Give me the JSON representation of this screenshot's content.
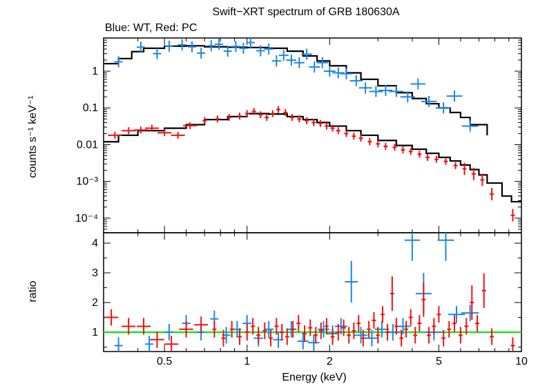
{
  "title": "Swift−XRT spectrum of GRB 180630A",
  "subtitle": "Blue: WT, Red: PC",
  "colors": {
    "wt": "#1a87e6",
    "pc": "#ee1111",
    "model": "#000000",
    "unity": "#22dd22"
  },
  "chart_data": [
    {
      "type": "scatter",
      "panel": "spectrum",
      "xlabel": "Energy (keV)",
      "ylabel": "counts s⁻¹ keV⁻¹",
      "xscale": "log",
      "yscale": "log",
      "xlim": [
        0.3,
        10
      ],
      "ylim": [
        4e-05,
        8
      ],
      "ytick_labels": [
        {
          "v": 1,
          "label": "1"
        },
        {
          "v": 0.1,
          "label": "0.1"
        },
        {
          "v": 0.01,
          "label": "0.01"
        },
        {
          "v": 0.001,
          "label": "10⁻³"
        },
        {
          "v": 0.0001,
          "label": "10⁻⁴"
        }
      ],
      "series": [
        {
          "name": "WT",
          "color": "#1a87e6",
          "points": [
            [
              0.34,
              1.8
            ],
            [
              0.41,
              4.5
            ],
            [
              0.47,
              3.0
            ],
            [
              0.52,
              4.8
            ],
            [
              0.58,
              5.2
            ],
            [
              0.63,
              4.6
            ],
            [
              0.68,
              3.1
            ],
            [
              0.74,
              4.9
            ],
            [
              0.79,
              5.4
            ],
            [
              0.85,
              3.5
            ],
            [
              0.91,
              4.7
            ],
            [
              0.97,
              4.2
            ],
            [
              1.03,
              6.0
            ],
            [
              1.12,
              3.6
            ],
            [
              1.2,
              4.0
            ],
            [
              1.28,
              1.9
            ],
            [
              1.36,
              2.7
            ],
            [
              1.45,
              2.0
            ],
            [
              1.55,
              1.7
            ],
            [
              1.65,
              2.9
            ],
            [
              1.76,
              1.3
            ],
            [
              1.88,
              1.7
            ],
            [
              2.0,
              1.0
            ],
            [
              2.15,
              0.9
            ],
            [
              2.3,
              0.85
            ],
            [
              2.5,
              0.55
            ],
            [
              2.7,
              0.35
            ],
            [
              2.95,
              0.28
            ],
            [
              3.2,
              0.3
            ],
            [
              3.5,
              0.28
            ],
            [
              3.85,
              0.2
            ],
            [
              4.2,
              0.45
            ],
            [
              4.6,
              0.15
            ],
            [
              5.2,
              0.1
            ],
            [
              5.7,
              0.21
            ],
            [
              6.5,
              0.032
            ]
          ]
        },
        {
          "name": "PC",
          "color": "#ee1111",
          "points": [
            [
              0.33,
              0.018
            ],
            [
              0.37,
              0.024
            ],
            [
              0.41,
              0.025
            ],
            [
              0.45,
              0.028
            ],
            [
              0.5,
              0.021
            ],
            [
              0.56,
              0.018
            ],
            [
              0.62,
              0.033
            ],
            [
              0.7,
              0.045
            ],
            [
              0.78,
              0.05
            ],
            [
              0.86,
              0.055
            ],
            [
              0.94,
              0.06
            ],
            [
              1.0,
              0.07
            ],
            [
              1.06,
              0.08
            ],
            [
              1.12,
              0.065
            ],
            [
              1.18,
              0.055
            ],
            [
              1.24,
              0.07
            ],
            [
              1.3,
              0.09
            ],
            [
              1.38,
              0.075
            ],
            [
              1.46,
              0.055
            ],
            [
              1.55,
              0.05
            ],
            [
              1.65,
              0.045
            ],
            [
              1.75,
              0.04
            ],
            [
              1.85,
              0.038
            ],
            [
              1.95,
              0.032
            ],
            [
              2.05,
              0.028
            ],
            [
              2.15,
              0.024
            ],
            [
              2.3,
              0.02
            ],
            [
              2.45,
              0.017
            ],
            [
              2.6,
              0.015
            ],
            [
              2.8,
              0.012
            ],
            [
              3.0,
              0.0105
            ],
            [
              3.2,
              0.009
            ],
            [
              3.45,
              0.0085
            ],
            [
              3.7,
              0.0072
            ],
            [
              3.95,
              0.0065
            ],
            [
              4.25,
              0.0055
            ],
            [
              4.55,
              0.0045
            ],
            [
              4.9,
              0.004
            ],
            [
              5.3,
              0.0035
            ],
            [
              5.75,
              0.0027
            ],
            [
              6.2,
              0.0022
            ],
            [
              6.7,
              0.0016
            ],
            [
              7.2,
              0.0011
            ],
            [
              7.8,
              0.00045
            ],
            [
              9.3,
              0.00012
            ]
          ]
        }
      ],
      "model": [
        [
          0.3,
          0.012
        ],
        [
          0.34,
          0.018
        ],
        [
          0.4,
          0.024
        ],
        [
          0.5,
          0.028
        ],
        [
          0.6,
          0.035
        ],
        [
          0.7,
          0.048
        ],
        [
          0.85,
          0.058
        ],
        [
          1.0,
          0.07
        ],
        [
          1.2,
          0.068
        ],
        [
          1.4,
          0.058
        ],
        [
          1.6,
          0.048
        ],
        [
          1.8,
          0.04
        ],
        [
          2.0,
          0.032
        ],
        [
          2.3,
          0.024
        ],
        [
          2.6,
          0.018
        ],
        [
          3.0,
          0.013
        ],
        [
          3.5,
          0.0095
        ],
        [
          4.0,
          0.0075
        ],
        [
          4.5,
          0.0058
        ],
        [
          5.0,
          0.0045
        ],
        [
          5.5,
          0.0036
        ],
        [
          6.0,
          0.0028
        ],
        [
          6.5,
          0.0021
        ],
        [
          7.0,
          0.0015
        ],
        [
          7.5,
          0.0009
        ],
        [
          8.5,
          0.0004
        ],
        [
          9.2,
          0.00028
        ],
        [
          10,
          0.00028
        ]
      ],
      "model_wt": [
        [
          0.3,
          1.6
        ],
        [
          0.34,
          2.2
        ],
        [
          0.38,
          3.4
        ],
        [
          0.42,
          4.2
        ],
        [
          0.5,
          4.8
        ],
        [
          0.6,
          4.9
        ],
        [
          0.7,
          4.6
        ],
        [
          0.85,
          4.5
        ],
        [
          1.0,
          4.4
        ],
        [
          1.2,
          4.2
        ],
        [
          1.4,
          3.5
        ],
        [
          1.6,
          2.6
        ],
        [
          1.8,
          1.9
        ],
        [
          2.0,
          1.4
        ],
        [
          2.3,
          0.9
        ],
        [
          2.6,
          0.6
        ],
        [
          3.0,
          0.4
        ],
        [
          3.5,
          0.26
        ],
        [
          4.0,
          0.18
        ],
        [
          4.5,
          0.13
        ],
        [
          5.0,
          0.1
        ],
        [
          5.5,
          0.075
        ],
        [
          6.0,
          0.055
        ],
        [
          6.5,
          0.035
        ],
        [
          7.5,
          0.018
        ]
      ]
    },
    {
      "type": "scatter",
      "panel": "ratio",
      "xlabel": "Energy (keV)",
      "ylabel": "ratio",
      "xscale": "log",
      "xlim": [
        0.3,
        10
      ],
      "ylim": [
        0.35,
        4.35
      ],
      "xticks": [
        {
          "v": 0.5,
          "label": "0.5"
        },
        {
          "v": 1,
          "label": "1"
        },
        {
          "v": 2,
          "label": "2"
        },
        {
          "v": 5,
          "label": "5"
        },
        {
          "v": 10,
          "label": "10"
        }
      ],
      "yticks": [
        {
          "v": 1,
          "label": "1"
        },
        {
          "v": 2,
          "label": "2"
        },
        {
          "v": 3,
          "label": "3"
        },
        {
          "v": 4,
          "label": "4"
        }
      ],
      "reference_line": 1,
      "series": [
        {
          "name": "WT",
          "color": "#1a87e6",
          "points": [
            [
              0.34,
              0.55
            ],
            [
              0.44,
              0.6
            ],
            [
              0.52,
              1.0
            ],
            [
              0.6,
              1.3
            ],
            [
              0.68,
              1.0
            ],
            [
              0.76,
              1.45
            ],
            [
              0.84,
              0.9
            ],
            [
              0.92,
              1.1
            ],
            [
              1.0,
              1.3
            ],
            [
              1.1,
              0.8
            ],
            [
              1.2,
              1.1
            ],
            [
              1.3,
              0.75
            ],
            [
              1.45,
              1.1
            ],
            [
              1.6,
              0.7
            ],
            [
              1.75,
              0.65
            ],
            [
              1.9,
              1.1
            ],
            [
              2.05,
              0.95
            ],
            [
              2.2,
              1.2
            ],
            [
              2.4,
              2.7
            ],
            [
              2.6,
              0.9
            ],
            [
              2.85,
              0.8
            ],
            [
              3.1,
              1.1
            ],
            [
              3.4,
              1.0
            ],
            [
              3.7,
              1.2
            ],
            [
              4.0,
              4.1
            ],
            [
              4.4,
              2.3
            ],
            [
              4.8,
              1.0
            ],
            [
              5.3,
              4.1
            ],
            [
              5.8,
              1.6
            ],
            [
              6.5,
              1.65
            ]
          ]
        },
        {
          "name": "PC",
          "color": "#ee1111",
          "points": [
            [
              0.32,
              1.5
            ],
            [
              0.37,
              1.2
            ],
            [
              0.42,
              1.2
            ],
            [
              0.47,
              0.75
            ],
            [
              0.53,
              0.6
            ],
            [
              0.6,
              1.1
            ],
            [
              0.68,
              1.25
            ],
            [
              0.76,
              1.1
            ],
            [
              0.82,
              0.8
            ],
            [
              0.88,
              1.1
            ],
            [
              0.94,
              0.85
            ],
            [
              1.0,
              1.0
            ],
            [
              1.05,
              1.2
            ],
            [
              1.1,
              0.9
            ],
            [
              1.16,
              1.05
            ],
            [
              1.22,
              0.8
            ],
            [
              1.28,
              1.2
            ],
            [
              1.34,
              1.0
            ],
            [
              1.4,
              0.85
            ],
            [
              1.47,
              1.1
            ],
            [
              1.54,
              1.3
            ],
            [
              1.62,
              0.95
            ],
            [
              1.7,
              1.15
            ],
            [
              1.78,
              0.9
            ],
            [
              1.86,
              1.05
            ],
            [
              1.95,
              1.2
            ],
            [
              2.05,
              0.85
            ],
            [
              2.15,
              1.0
            ],
            [
              2.25,
              1.15
            ],
            [
              2.35,
              0.9
            ],
            [
              2.45,
              1.05
            ],
            [
              2.55,
              1.3
            ],
            [
              2.65,
              0.8
            ],
            [
              2.78,
              1.1
            ],
            [
              2.9,
              1.4
            ],
            [
              3.0,
              0.9
            ],
            [
              3.12,
              1.6
            ],
            [
              3.25,
              1.0
            ],
            [
              3.38,
              2.3
            ],
            [
              3.5,
              1.2
            ],
            [
              3.65,
              0.8
            ],
            [
              3.8,
              1.1
            ],
            [
              3.95,
              1.5
            ],
            [
              4.1,
              0.9
            ],
            [
              4.25,
              1.3
            ],
            [
              4.4,
              2.1
            ],
            [
              4.6,
              0.9
            ],
            [
              4.8,
              1.2
            ],
            [
              5.0,
              1.6
            ],
            [
              5.2,
              0.8
            ],
            [
              5.45,
              1.1
            ],
            [
              5.7,
              1.3
            ],
            [
              6.0,
              0.9
            ],
            [
              6.3,
              1.2
            ],
            [
              6.6,
              2.0
            ],
            [
              6.9,
              1.3
            ],
            [
              7.3,
              2.4
            ],
            [
              7.8,
              0.85
            ],
            [
              9.3,
              0.55
            ]
          ]
        }
      ]
    }
  ]
}
